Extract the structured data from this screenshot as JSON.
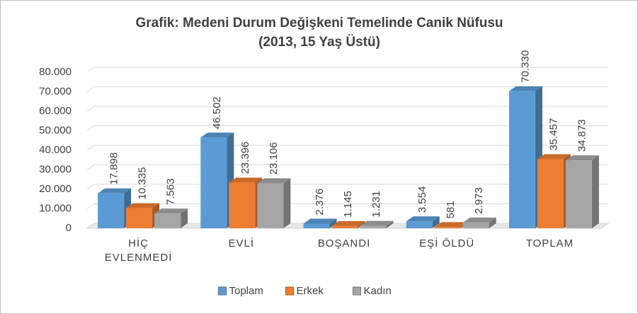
{
  "chart_data": {
    "type": "bar3d",
    "title": "Grafik: Medeni Durum Değişkeni Temelinde Canik Nüfusu",
    "subtitle": "(2013, 15 Yaş Üstü)",
    "categories": [
      "HİÇ EVLENMEDİ",
      "EVLİ",
      "BOŞANDI",
      "EŞİ ÖLDÜ",
      "TOPLAM"
    ],
    "series": [
      {
        "name": "Toplam",
        "color": "#5b9bd5",
        "values": [
          17898,
          46502,
          2376,
          3554,
          70330
        ],
        "value_labels": [
          "17.898",
          "46.502",
          "2.376",
          "3.554",
          "70.330"
        ]
      },
      {
        "name": "Erkek",
        "color": "#ed7d31",
        "values": [
          10335,
          23396,
          1145,
          581,
          35457
        ],
        "value_labels": [
          "10.335",
          "23.396",
          "1.145",
          "581",
          "35.457"
        ]
      },
      {
        "name": "Kadın",
        "color": "#a5a5a5",
        "values": [
          7563,
          23106,
          1231,
          2973,
          34873
        ],
        "value_labels": [
          "7.563",
          "23.106",
          "1.231",
          "2.973",
          "34.873"
        ]
      }
    ],
    "ylim": [
      0,
      80000
    ],
    "yticks": [
      0,
      {
        "value": 10000,
        "label": "10.000"
      },
      {
        "value": 20000,
        "label": "20.000"
      },
      {
        "value": 30000,
        "label": "30.000"
      },
      {
        "value": 40000,
        "label": "40.000"
      },
      {
        "value": 50000,
        "label": "50.000"
      },
      {
        "value": 60000,
        "label": "60.000"
      },
      {
        "value": 70000,
        "label": "70.000"
      },
      {
        "value": 80000,
        "label": "80.000"
      }
    ],
    "grid": true,
    "legend": "bottom"
  }
}
